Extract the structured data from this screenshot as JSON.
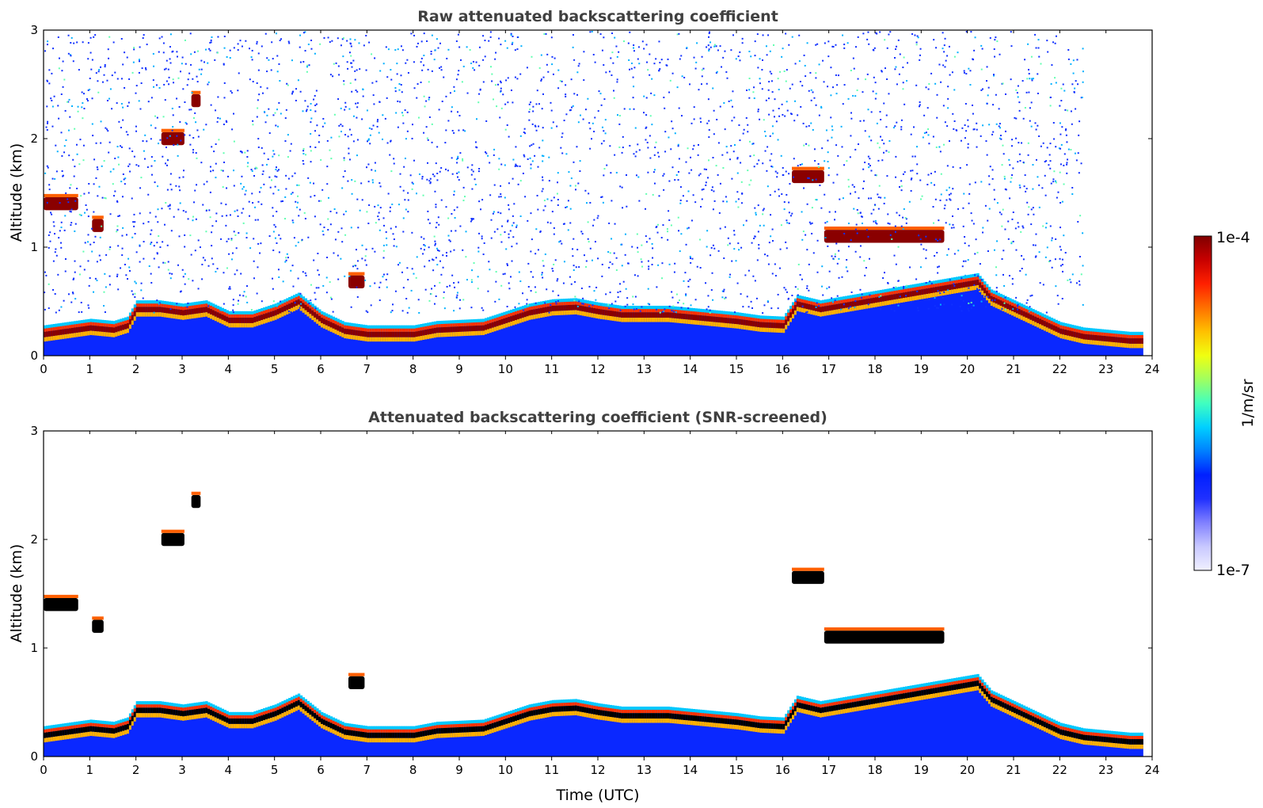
{
  "chart_data": [
    {
      "type": "heatmap",
      "title": "Raw attenuated backscattering coefficient",
      "xlabel": "",
      "ylabel": "Altitude (km)",
      "xlim": [
        0,
        24
      ],
      "ylim": [
        0,
        3
      ],
      "xticks": [
        "0",
        "1",
        "2",
        "3",
        "4",
        "5",
        "6",
        "7",
        "8",
        "9",
        "10",
        "11",
        "12",
        "13",
        "14",
        "15",
        "16",
        "17",
        "18",
        "19",
        "20",
        "21",
        "22",
        "23",
        "24"
      ],
      "yticks": [
        "0",
        "1",
        "2",
        "3"
      ],
      "screened": false,
      "boundary_layer": [
        {
          "x": 0,
          "y": 0.22
        },
        {
          "x": 0.5,
          "y": 0.25
        },
        {
          "x": 1,
          "y": 0.28
        },
        {
          "x": 1.5,
          "y": 0.26
        },
        {
          "x": 1.8,
          "y": 0.3
        },
        {
          "x": 2.0,
          "y": 0.45
        },
        {
          "x": 2.5,
          "y": 0.45
        },
        {
          "x": 3.0,
          "y": 0.42
        },
        {
          "x": 3.5,
          "y": 0.45
        },
        {
          "x": 4.0,
          "y": 0.35
        },
        {
          "x": 4.5,
          "y": 0.35
        },
        {
          "x": 5.0,
          "y": 0.42
        },
        {
          "x": 5.5,
          "y": 0.52
        },
        {
          "x": 6.0,
          "y": 0.35
        },
        {
          "x": 6.5,
          "y": 0.25
        },
        {
          "x": 7.0,
          "y": 0.22
        },
        {
          "x": 7.5,
          "y": 0.22
        },
        {
          "x": 8.0,
          "y": 0.22
        },
        {
          "x": 8.5,
          "y": 0.26
        },
        {
          "x": 9.0,
          "y": 0.27
        },
        {
          "x": 9.5,
          "y": 0.28
        },
        {
          "x": 10.0,
          "y": 0.35
        },
        {
          "x": 10.5,
          "y": 0.42
        },
        {
          "x": 11.0,
          "y": 0.46
        },
        {
          "x": 11.5,
          "y": 0.47
        },
        {
          "x": 12.0,
          "y": 0.43
        },
        {
          "x": 12.5,
          "y": 0.4
        },
        {
          "x": 13.0,
          "y": 0.4
        },
        {
          "x": 13.5,
          "y": 0.4
        },
        {
          "x": 14.0,
          "y": 0.38
        },
        {
          "x": 14.5,
          "y": 0.36
        },
        {
          "x": 15.0,
          "y": 0.34
        },
        {
          "x": 15.5,
          "y": 0.31
        },
        {
          "x": 16.0,
          "y": 0.3
        },
        {
          "x": 16.3,
          "y": 0.5
        },
        {
          "x": 16.8,
          "y": 0.45
        },
        {
          "x": 20.2,
          "y": 0.7
        },
        {
          "x": 20.5,
          "y": 0.55
        },
        {
          "x": 21.0,
          "y": 0.45
        },
        {
          "x": 21.5,
          "y": 0.35
        },
        {
          "x": 22.0,
          "y": 0.25
        },
        {
          "x": 22.5,
          "y": 0.2
        },
        {
          "x": 23.0,
          "y": 0.18
        },
        {
          "x": 23.5,
          "y": 0.16
        },
        {
          "x": 23.8,
          "y": 0.16
        }
      ],
      "clouds": [
        {
          "x0": 0.0,
          "x1": 0.75,
          "y": 1.4
        },
        {
          "x0": 1.05,
          "x1": 1.3,
          "y": 1.2
        },
        {
          "x0": 2.55,
          "x1": 3.05,
          "y": 2.0
        },
        {
          "x0": 3.2,
          "x1": 3.4,
          "y": 2.35
        },
        {
          "x0": 16.2,
          "x1": 16.9,
          "y": 1.65
        },
        {
          "x0": 16.9,
          "x1": 19.5,
          "y": 1.1
        },
        {
          "x0": 6.6,
          "x1": 6.95,
          "y": 0.68
        }
      ]
    },
    {
      "type": "heatmap",
      "title": "Attenuated backscattering coefficient (SNR-screened)",
      "xlabel": "Time (UTC)",
      "ylabel": "Altitude (km)",
      "xlim": [
        0,
        24
      ],
      "ylim": [
        0,
        3
      ],
      "xticks": [
        "0",
        "1",
        "2",
        "3",
        "4",
        "5",
        "6",
        "7",
        "8",
        "9",
        "10",
        "11",
        "12",
        "13",
        "14",
        "15",
        "16",
        "17",
        "18",
        "19",
        "20",
        "21",
        "22",
        "23",
        "24"
      ],
      "yticks": [
        "0",
        "1",
        "2",
        "3"
      ],
      "screened": true
    }
  ],
  "colorbar": {
    "label": "1/m/sr",
    "max_label": "1e-4",
    "min_label": "1e-7",
    "scale": "log",
    "colormap": "jet",
    "colors": [
      "#800000",
      "#c80000",
      "#ff2000",
      "#ff7000",
      "#ffc000",
      "#f0ff10",
      "#a0ff60",
      "#40ffc0",
      "#00d0ff",
      "#0080ff",
      "#0020ff",
      "#2030ff",
      "#8080ff",
      "#c8c8ff",
      "#f0f0ff"
    ]
  }
}
